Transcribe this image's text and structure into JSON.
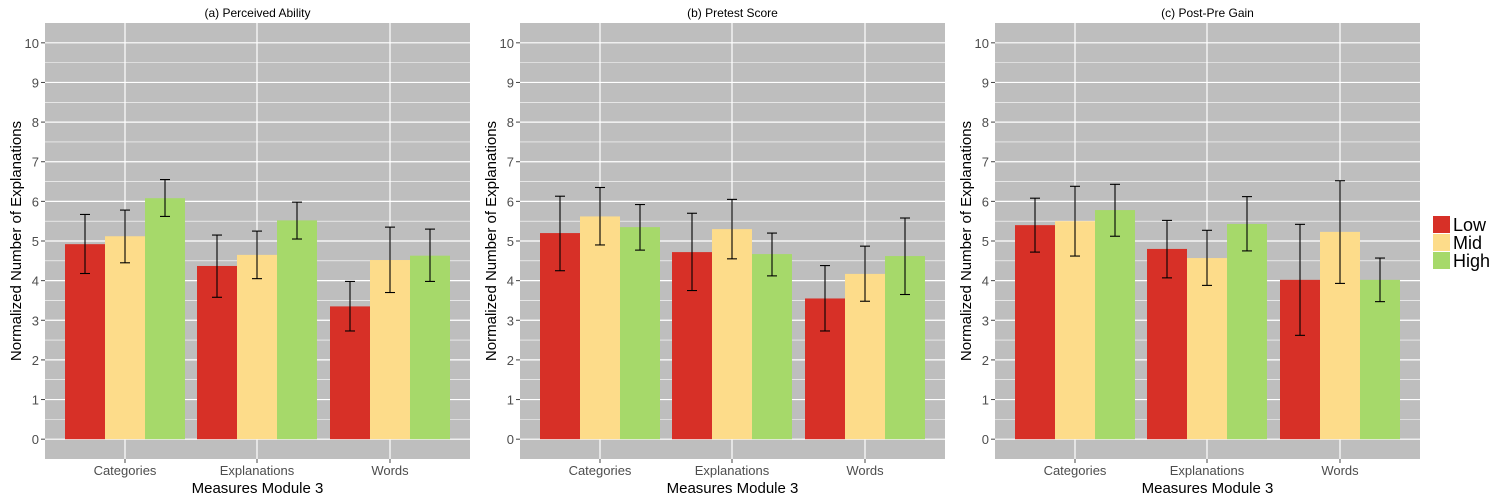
{
  "colors": {
    "panel_background": "#bebebe",
    "grid_line": "#ffffff",
    "low": "#d73027",
    "mid": "#fddc8a",
    "high": "#a6d96a",
    "error_bar": "#000000"
  },
  "legend": {
    "placement": "right",
    "items": [
      {
        "label": "Low",
        "color": "#d73027"
      },
      {
        "label": "Mid",
        "color": "#fddc8a"
      },
      {
        "label": "High",
        "color": "#a6d96a"
      }
    ]
  },
  "chart_data": [
    {
      "type": "bar",
      "title": "(a) Perceived Ability",
      "xlabel": "Measures Module 3",
      "ylabel": "Normalized Number of Explanations",
      "ylim": [
        -0.5,
        10.5
      ],
      "yticks": [
        0,
        1,
        2,
        3,
        4,
        5,
        6,
        7,
        8,
        9,
        10
      ],
      "grid": true,
      "categories": [
        "Categories",
        "Explanations",
        "Words"
      ],
      "series": [
        {
          "name": "Low",
          "values": [
            4.92,
            4.37,
            3.35
          ],
          "error_low": [
            4.18,
            3.58,
            2.73
          ],
          "error_high": [
            5.67,
            5.15,
            3.98
          ]
        },
        {
          "name": "Mid",
          "values": [
            5.12,
            4.65,
            4.52
          ],
          "error_low": [
            4.45,
            4.05,
            3.7
          ],
          "error_high": [
            5.78,
            5.25,
            5.35
          ]
        },
        {
          "name": "High",
          "values": [
            6.08,
            5.52,
            4.63
          ],
          "error_low": [
            5.62,
            5.05,
            3.98
          ],
          "error_high": [
            6.55,
            5.98,
            5.3
          ]
        }
      ]
    },
    {
      "type": "bar",
      "title": "(b) Pretest Score",
      "xlabel": "Measures Module 3",
      "ylabel": "Normalized Number of Explanations",
      "ylim": [
        -0.5,
        10.5
      ],
      "yticks": [
        0,
        1,
        2,
        3,
        4,
        5,
        6,
        7,
        8,
        9,
        10
      ],
      "grid": true,
      "categories": [
        "Categories",
        "Explanations",
        "Words"
      ],
      "series": [
        {
          "name": "Low",
          "values": [
            5.2,
            4.72,
            3.55
          ],
          "error_low": [
            4.25,
            3.75,
            2.73
          ],
          "error_high": [
            6.13,
            5.7,
            4.38
          ]
        },
        {
          "name": "Mid",
          "values": [
            5.62,
            5.3,
            4.17
          ],
          "error_low": [
            4.9,
            4.55,
            3.48
          ],
          "error_high": [
            6.35,
            6.05,
            4.87
          ]
        },
        {
          "name": "High",
          "values": [
            5.35,
            4.67,
            4.62
          ],
          "error_low": [
            4.77,
            4.12,
            3.65
          ],
          "error_high": [
            5.92,
            5.2,
            5.58
          ]
        }
      ]
    },
    {
      "type": "bar",
      "title": "(c) Post-Pre Gain",
      "xlabel": "Measures Module 3",
      "ylabel": "Normalized Number of Explanations",
      "ylim": [
        -0.5,
        10.5
      ],
      "yticks": [
        0,
        1,
        2,
        3,
        4,
        5,
        6,
        7,
        8,
        9,
        10
      ],
      "grid": true,
      "categories": [
        "Categories",
        "Explanations",
        "Words"
      ],
      "series": [
        {
          "name": "Low",
          "values": [
            5.4,
            4.8,
            4.02
          ],
          "error_low": [
            4.72,
            4.07,
            2.62
          ],
          "error_high": [
            6.08,
            5.52,
            5.42
          ]
        },
        {
          "name": "Mid",
          "values": [
            5.5,
            4.57,
            5.23
          ],
          "error_low": [
            4.62,
            3.88,
            3.93
          ],
          "error_high": [
            6.38,
            5.27,
            6.52
          ]
        },
        {
          "name": "High",
          "values": [
            5.78,
            5.43,
            4.02
          ],
          "error_low": [
            5.12,
            4.75,
            3.47
          ],
          "error_high": [
            6.43,
            6.12,
            4.57
          ]
        }
      ]
    }
  ]
}
